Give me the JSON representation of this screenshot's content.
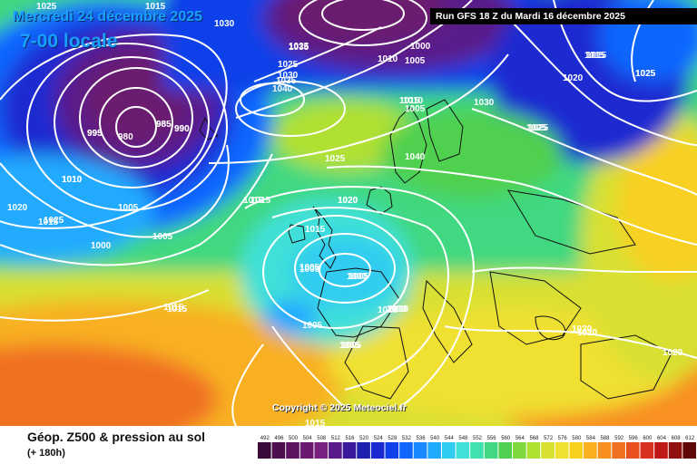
{
  "header": {
    "date": "Mercredi 24 décembre 2025",
    "local_time": "7-00 locale",
    "run": "Run GFS 18 Z du Mardi 16 décembre 2025"
  },
  "copyright": "Copyright © 2025 Meteociel.fr",
  "footer": {
    "title": "Géop. Z500 & pression au sol",
    "lead": "(+ 180h)"
  },
  "legend": {
    "ticks": [
      "492",
      "496",
      "500",
      "504",
      "508",
      "512",
      "516",
      "520",
      "524",
      "528",
      "532",
      "536",
      "540",
      "544",
      "548",
      "552",
      "556",
      "560",
      "564",
      "568",
      "572",
      "576",
      "580",
      "584",
      "588",
      "592",
      "596",
      "600",
      "604",
      "608",
      "612"
    ],
    "colors": [
      "#3a0a3a",
      "#4d0f4f",
      "#5c1460",
      "#6a1a6e",
      "#7a2080",
      "#5a1a8a",
      "#3a1a9a",
      "#2020b0",
      "#1a2ad0",
      "#1040e8",
      "#1066ff",
      "#1a88ff",
      "#20aaff",
      "#30ccf0",
      "#40e0d8",
      "#40e0b0",
      "#40d880",
      "#50d050",
      "#80d840",
      "#b0e030",
      "#d8e030",
      "#f0e030",
      "#f8d020",
      "#f8b020",
      "#f89020",
      "#f07020",
      "#e85020",
      "#d83020",
      "#c01818",
      "#901010",
      "#600808"
    ]
  },
  "pressure_labels": [
    "1025",
    "1015",
    "1030",
    "1025",
    "985",
    "990",
    "995",
    "1000",
    "1005",
    "1010",
    "1035",
    "1025",
    "1030",
    "1035",
    "1040",
    "1010",
    "1005",
    "1015",
    "1020",
    "1015",
    "1025",
    "995",
    "980",
    "985",
    "990",
    "1015",
    "1010",
    "1015",
    "1020",
    "1015",
    "1010",
    "1020",
    "1025",
    "1040",
    "1025",
    "1000",
    "1005",
    "1015",
    "1005",
    "1030",
    "1015",
    "1025",
    "1005",
    "1010",
    "1005",
    "1000",
    "1010",
    "1005",
    "1005",
    "1020",
    "1015",
    "1020",
    "1020",
    "1015",
    "1025",
    "1025",
    "1020",
    "1005",
    "1005",
    "1015",
    "1015",
    "1010"
  ]
}
